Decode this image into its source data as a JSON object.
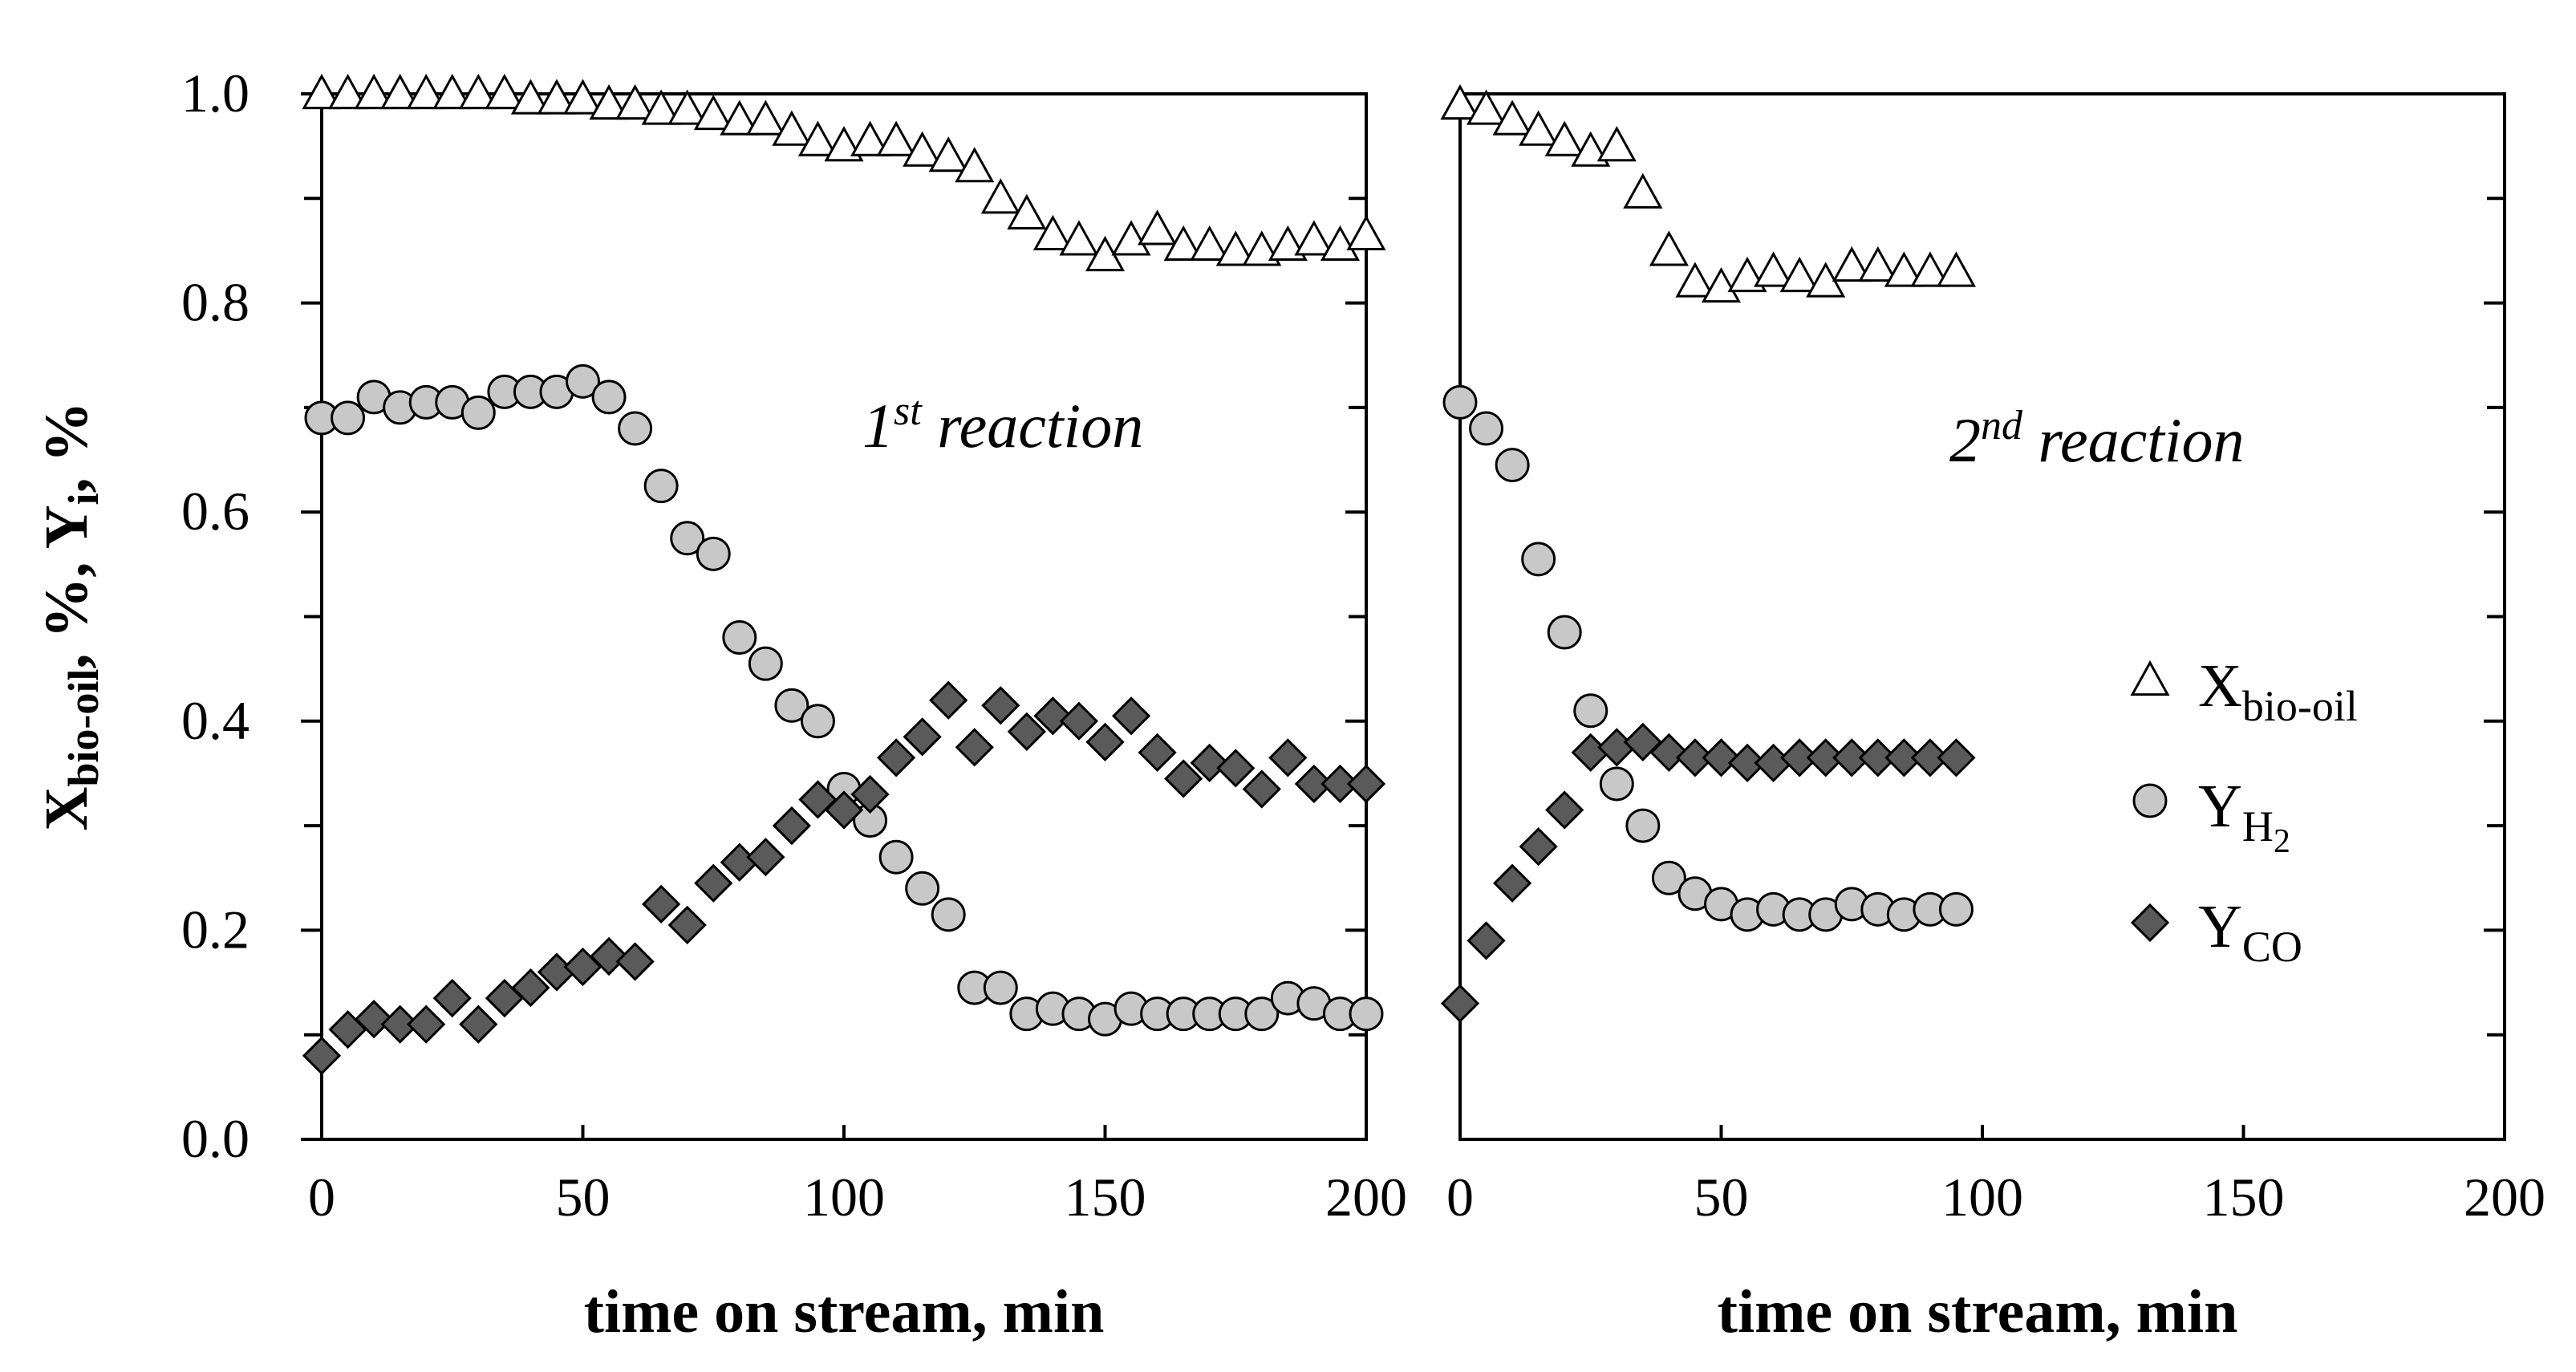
{
  "chart_data": [
    {
      "type": "scatter",
      "panel": "left",
      "annotation": {
        "num": "1",
        "sup": "st",
        "rest": " reaction"
      },
      "xlabel": "time on stream, min",
      "ylabel": {
        "x": "X",
        "x_sub": "bio-oil",
        "mid": ", %, ",
        "y": "Y",
        "y_sub": "i",
        "end": ", %"
      },
      "xlim": [
        0,
        200
      ],
      "ylim": [
        0.0,
        1.0
      ],
      "x_ticks": [
        "0",
        "50",
        "100",
        "150",
        "200"
      ],
      "y_ticks": [
        "0.0",
        "0.2",
        "0.4",
        "0.6",
        "0.8",
        "1.0"
      ],
      "series": [
        {
          "name": "X_bio-oil",
          "marker": "triangle",
          "x": [
            0,
            5,
            10,
            15,
            20,
            25,
            30,
            35,
            40,
            45,
            50,
            55,
            60,
            65,
            70,
            75,
            80,
            85,
            90,
            95,
            100,
            105,
            110,
            115,
            120,
            125,
            130,
            135,
            140,
            145,
            150,
            155,
            160,
            165,
            170,
            175,
            180,
            185,
            190,
            195,
            200
          ],
          "y": [
            1.0,
            1.0,
            1.0,
            1.0,
            1.0,
            1.0,
            1.0,
            1.0,
            0.995,
            0.995,
            0.995,
            0.99,
            0.99,
            0.985,
            0.985,
            0.98,
            0.975,
            0.975,
            0.965,
            0.955,
            0.95,
            0.955,
            0.955,
            0.945,
            0.94,
            0.93,
            0.9,
            0.885,
            0.865,
            0.86,
            0.845,
            0.86,
            0.87,
            0.855,
            0.855,
            0.85,
            0.85,
            0.855,
            0.86,
            0.855,
            0.865
          ]
        },
        {
          "name": "Y_H2",
          "marker": "circle",
          "x": [
            0,
            5,
            10,
            15,
            20,
            25,
            30,
            35,
            40,
            45,
            50,
            55,
            60,
            65,
            70,
            75,
            80,
            85,
            90,
            95,
            100,
            105,
            110,
            115,
            120,
            125,
            130,
            135,
            140,
            145,
            150,
            155,
            160,
            165,
            170,
            175,
            180,
            185,
            190,
            195,
            200
          ],
          "y": [
            0.69,
            0.69,
            0.71,
            0.7,
            0.705,
            0.705,
            0.695,
            0.715,
            0.715,
            0.715,
            0.725,
            0.71,
            0.68,
            0.625,
            0.575,
            0.56,
            0.48,
            0.455,
            0.415,
            0.4,
            0.335,
            0.305,
            0.27,
            0.24,
            0.215,
            0.145,
            0.145,
            0.12,
            0.125,
            0.12,
            0.115,
            0.125,
            0.12,
            0.12,
            0.12,
            0.12,
            0.12,
            0.135,
            0.13,
            0.12,
            0.12
          ]
        },
        {
          "name": "Y_CO",
          "marker": "diamond",
          "x": [
            0,
            5,
            10,
            15,
            20,
            25,
            30,
            35,
            40,
            45,
            50,
            55,
            60,
            65,
            70,
            75,
            80,
            85,
            90,
            95,
            100,
            105,
            110,
            115,
            120,
            125,
            130,
            135,
            140,
            145,
            150,
            155,
            160,
            165,
            170,
            175,
            180,
            185,
            190,
            195,
            200
          ],
          "y": [
            0.08,
            0.105,
            0.115,
            0.11,
            0.11,
            0.135,
            0.11,
            0.135,
            0.145,
            0.16,
            0.165,
            0.175,
            0.17,
            0.225,
            0.205,
            0.245,
            0.265,
            0.27,
            0.3,
            0.325,
            0.315,
            0.33,
            0.365,
            0.385,
            0.42,
            0.375,
            0.415,
            0.39,
            0.405,
            0.4,
            0.38,
            0.405,
            0.37,
            0.345,
            0.36,
            0.355,
            0.335,
            0.365,
            0.34,
            0.34,
            0.34
          ]
        }
      ]
    },
    {
      "type": "scatter",
      "panel": "right",
      "annotation": {
        "num": "2",
        "sup": "nd",
        "rest": " reaction"
      },
      "xlabel": "time on stream, min",
      "xlim": [
        0,
        200
      ],
      "ylim": [
        0.0,
        1.0
      ],
      "x_ticks": [
        "0",
        "50",
        "100",
        "150",
        "200"
      ],
      "series": [
        {
          "name": "X_bio-oil",
          "marker": "triangle",
          "x": [
            0,
            5,
            10,
            15,
            20,
            25,
            30,
            35,
            40,
            45,
            50,
            55,
            60,
            65,
            70,
            75,
            80,
            85,
            90,
            95
          ],
          "y": [
            0.99,
            0.985,
            0.975,
            0.965,
            0.955,
            0.945,
            0.95,
            0.905,
            0.85,
            0.82,
            0.815,
            0.825,
            0.83,
            0.825,
            0.82,
            0.835,
            0.835,
            0.83,
            0.83,
            0.83
          ]
        },
        {
          "name": "Y_H2",
          "marker": "circle",
          "x": [
            0,
            5,
            10,
            15,
            20,
            25,
            30,
            35,
            40,
            45,
            50,
            55,
            60,
            65,
            70,
            75,
            80,
            85,
            90,
            95
          ],
          "y": [
            0.705,
            0.68,
            0.645,
            0.555,
            0.485,
            0.41,
            0.34,
            0.3,
            0.25,
            0.235,
            0.225,
            0.215,
            0.22,
            0.215,
            0.215,
            0.225,
            0.22,
            0.215,
            0.22,
            0.22
          ]
        },
        {
          "name": "Y_CO",
          "marker": "diamond",
          "x": [
            0,
            5,
            10,
            15,
            20,
            25,
            30,
            35,
            40,
            45,
            50,
            55,
            60,
            65,
            70,
            75,
            80,
            85,
            90,
            95
          ],
          "y": [
            0.13,
            0.19,
            0.245,
            0.28,
            0.315,
            0.37,
            0.375,
            0.38,
            0.37,
            0.365,
            0.365,
            0.36,
            0.36,
            0.365,
            0.365,
            0.365,
            0.365,
            0.365,
            0.365,
            0.365
          ]
        }
      ]
    }
  ],
  "legend": [
    {
      "marker": "triangle",
      "main": "X",
      "sub": "bio-oil",
      "subsub": ""
    },
    {
      "marker": "circle",
      "main": "Y",
      "sub": "H",
      "subsub": "2"
    },
    {
      "marker": "diamond",
      "main": "Y",
      "sub": "CO",
      "subsub": ""
    }
  ],
  "colors": {
    "triangle_fill": "#ffffff",
    "circle_fill": "#c8c8c8",
    "diamond_fill": "#5a5a5a",
    "stroke": "#000000"
  }
}
